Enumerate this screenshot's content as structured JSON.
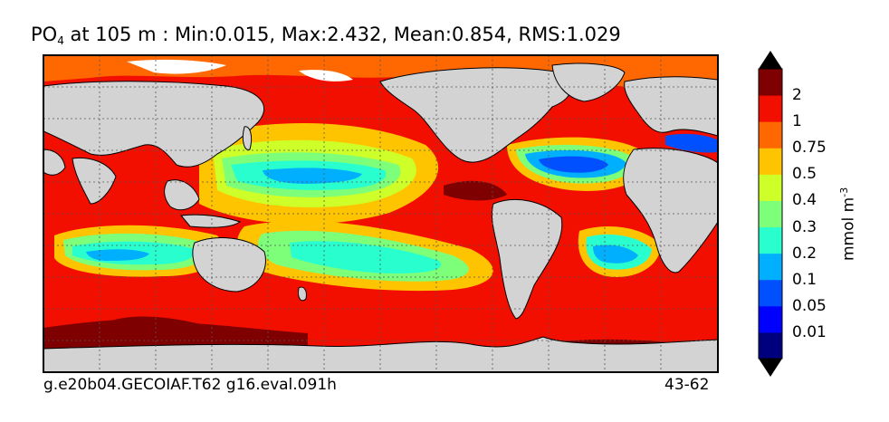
{
  "title": {
    "variable": "PO",
    "subscript": "4",
    "text": "at 105 m : Min:0.015, Max:2.432, Mean:0.854, RMS:1.029"
  },
  "footer": {
    "case_name": "g.e20b04.GECOIAF.T62 g16.eval.091h",
    "years": "43-62"
  },
  "colorbar": {
    "unit": "mmol m",
    "unit_exponent": "-3",
    "levels": [
      "0.01",
      "0.05",
      "0.1",
      "0.2",
      "0.3",
      "0.4",
      "0.5",
      "0.75",
      "1",
      "2"
    ],
    "colors": [
      "#00007f",
      "#0000ff",
      "#0050ff",
      "#00b0ff",
      "#29ffce",
      "#7dff7a",
      "#ceff29",
      "#ffc400",
      "#ff6800",
      "#f20f00",
      "#7f0000"
    ]
  },
  "map": {
    "land_color": "#d3d3d3",
    "ice_color": "#ffffff",
    "grid": true
  }
}
